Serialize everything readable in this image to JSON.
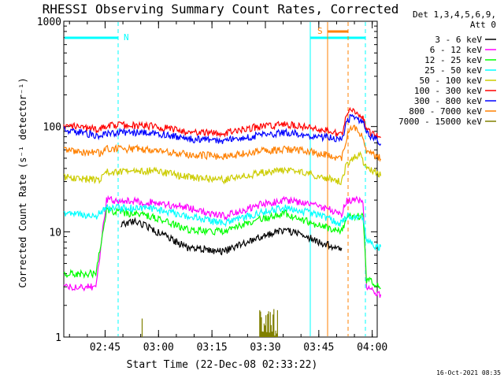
{
  "chart_data": {
    "type": "line",
    "title": "RHESSI Observing Summary Count Rates, Corrected",
    "ylabel": "Corrected Count Rate (s⁻¹ detector⁻¹)",
    "xlabel": "Start Time (22-Dec-08 02:33:22)",
    "y_scale": "log",
    "ylim": [
      1,
      1000
    ],
    "xlim_minutes": [
      0,
      88
    ],
    "x_tick_labels": [
      {
        "label": "02:45",
        "minutes": 11.6
      },
      {
        "label": "03:00",
        "minutes": 26.6
      },
      {
        "label": "03:15",
        "minutes": 41.6
      },
      {
        "label": "03:30",
        "minutes": 56.6
      },
      {
        "label": "03:45",
        "minutes": 71.6
      },
      {
        "label": "04:00",
        "minutes": 86.6
      }
    ],
    "y_tick_labels": [
      {
        "label": "1000",
        "value": 1000
      },
      {
        "label": "100",
        "value": 100
      },
      {
        "label": "10",
        "value": 10
      },
      {
        "label": "1",
        "value": 1
      }
    ],
    "legend": {
      "header": [
        "Det 1,3,4,5,6,9,",
        "Att 0"
      ],
      "placement": "right"
    },
    "series": [
      {
        "name": "3 - 6 keV",
        "color": "#000000",
        "points": [
          [
            16,
            11.5
          ],
          [
            20,
            12.5
          ],
          [
            25,
            10.5
          ],
          [
            35,
            7.0
          ],
          [
            45,
            6.5
          ],
          [
            55,
            9.0
          ],
          [
            62,
            10.5
          ],
          [
            68,
            9.0
          ],
          [
            74,
            7.5
          ],
          [
            78,
            7.0
          ]
        ]
      },
      {
        "name": "6 - 12 keV",
        "color": "#ff00ff",
        "points": [
          [
            0,
            3.0
          ],
          [
            9,
            3.0
          ],
          [
            12,
            20.0
          ],
          [
            25,
            19.0
          ],
          [
            35,
            17.0
          ],
          [
            45,
            14.0
          ],
          [
            55,
            18.0
          ],
          [
            62,
            20.0
          ],
          [
            70,
            18.0
          ],
          [
            78,
            15.0
          ],
          [
            79.5,
            20.0
          ],
          [
            84,
            20.0
          ],
          [
            85,
            3.0
          ],
          [
            89,
            2.5
          ]
        ]
      },
      {
        "name": "12 - 25 keV",
        "color": "#00ff00",
        "points": [
          [
            0,
            4.0
          ],
          [
            9,
            4.0
          ],
          [
            12,
            16.0
          ],
          [
            25,
            14.0
          ],
          [
            35,
            10.5
          ],
          [
            45,
            10.0
          ],
          [
            55,
            13.0
          ],
          [
            62,
            15.0
          ],
          [
            70,
            12.0
          ],
          [
            78,
            10.0
          ],
          [
            79.5,
            14.0
          ],
          [
            84,
            14.0
          ],
          [
            85,
            3.5
          ],
          [
            89,
            3.0
          ]
        ]
      },
      {
        "name": "25 - 50 keV",
        "color": "#00ffff",
        "points": [
          [
            0,
            15.0
          ],
          [
            9,
            14.0
          ],
          [
            12,
            17.0
          ],
          [
            25,
            16.5
          ],
          [
            35,
            14.0
          ],
          [
            45,
            12.0
          ],
          [
            55,
            15.0
          ],
          [
            62,
            17.0
          ],
          [
            70,
            15.0
          ],
          [
            78,
            12.0
          ],
          [
            79.5,
            14.0
          ],
          [
            84,
            14.0
          ],
          [
            85,
            8.0
          ],
          [
            89,
            7.0
          ]
        ]
      },
      {
        "name": "50 - 100 keV",
        "color": "#cccc00",
        "points": [
          [
            0,
            33.0
          ],
          [
            10,
            31.0
          ],
          [
            12,
            37.0
          ],
          [
            25,
            38.0
          ],
          [
            35,
            33.0
          ],
          [
            45,
            31.0
          ],
          [
            55,
            36.0
          ],
          [
            62,
            39.0
          ],
          [
            70,
            35.0
          ],
          [
            78,
            30.0
          ],
          [
            79.5,
            45.0
          ],
          [
            83,
            55.0
          ],
          [
            85,
            40.0
          ],
          [
            89,
            35.0
          ]
        ]
      },
      {
        "name": "100 - 300 keV",
        "color": "#ff0000",
        "points": [
          [
            0,
            103.0
          ],
          [
            10,
            93.0
          ],
          [
            12,
            103.0
          ],
          [
            25,
            101.0
          ],
          [
            35,
            88.0
          ],
          [
            45,
            87.0
          ],
          [
            55,
            100.0
          ],
          [
            62,
            105.0
          ],
          [
            70,
            97.0
          ],
          [
            78,
            84.0
          ],
          [
            79.5,
            130.0
          ],
          [
            81,
            150.0
          ],
          [
            84,
            125.0
          ],
          [
            85,
            90.0
          ],
          [
            89,
            80.0
          ]
        ]
      },
      {
        "name": "300 - 800 keV",
        "color": "#0000ff",
        "points": [
          [
            0,
            93.0
          ],
          [
            10,
            82.0
          ],
          [
            12,
            87.0
          ],
          [
            25,
            88.0
          ],
          [
            35,
            76.0
          ],
          [
            45,
            73.0
          ],
          [
            55,
            83.0
          ],
          [
            62,
            88.0
          ],
          [
            70,
            82.0
          ],
          [
            78,
            75.0
          ],
          [
            79.5,
            110.0
          ],
          [
            81,
            130.0
          ],
          [
            84,
            110.0
          ],
          [
            85,
            85.0
          ],
          [
            89,
            70.0
          ]
        ]
      },
      {
        "name": "800 - 7000 keV",
        "color": "#ff8000",
        "points": [
          [
            0,
            60.0
          ],
          [
            10,
            56.0
          ],
          [
            12,
            61.0
          ],
          [
            25,
            61.0
          ],
          [
            35,
            54.0
          ],
          [
            45,
            52.0
          ],
          [
            55,
            58.0
          ],
          [
            62,
            61.0
          ],
          [
            70,
            57.0
          ],
          [
            78,
            50.0
          ],
          [
            79.5,
            80.0
          ],
          [
            81,
            100.0
          ],
          [
            84,
            80.0
          ],
          [
            85,
            60.0
          ],
          [
            89,
            50.0
          ]
        ]
      },
      {
        "name": "7000 - 15000 keV",
        "color": "#808000",
        "points": [
          [
            22,
            1.5
          ],
          [
            55,
            1.8
          ],
          [
            60,
            1.8
          ]
        ]
      }
    ],
    "annotations": [
      {
        "text": "N",
        "color": "#00ffff"
      },
      {
        "text": "S",
        "color": "#ff8000"
      }
    ],
    "bottom_right_label": "16-Oct-2021 08:35"
  }
}
